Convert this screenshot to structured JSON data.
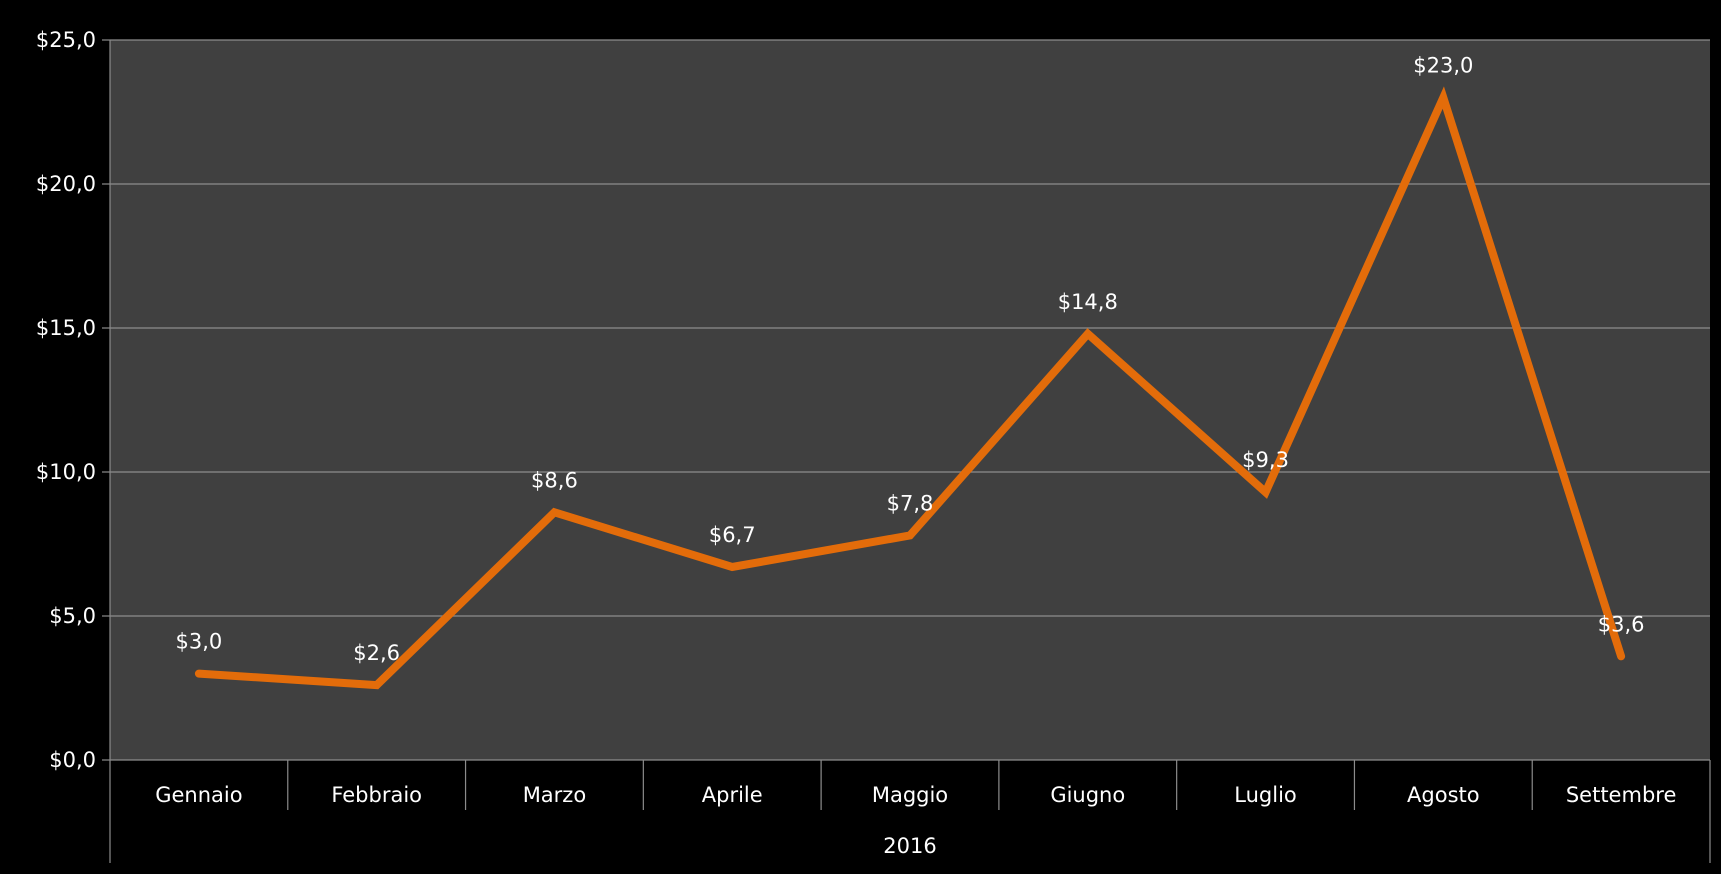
{
  "chart_data": {
    "type": "line",
    "categories": [
      "Gennaio",
      "Febbraio",
      "Marzo",
      "Aprile",
      "Maggio",
      "Giugno",
      "Luglio",
      "Agosto",
      "Settembre"
    ],
    "group_label": "2016",
    "series": [
      {
        "values": [
          3.0,
          2.6,
          8.6,
          6.7,
          7.8,
          14.8,
          9.3,
          23.0,
          3.6
        ],
        "color": "#E36C0A"
      }
    ],
    "data_labels": [
      "$3,0",
      "$2,6",
      "$8,6",
      "$6,7",
      "$7,8",
      "$14,8",
      "$9,3",
      "$23,0",
      "$3,6"
    ],
    "y_ticks": [
      0,
      5,
      10,
      15,
      20,
      25
    ],
    "y_tick_labels": [
      "$0,0",
      "$5,0",
      "$10,0",
      "$15,0",
      "$20,0",
      "$25,0"
    ],
    "ylim": [
      0,
      25
    ],
    "title": "",
    "xlabel": "",
    "ylabel": "",
    "grid": true,
    "legend": "none",
    "colors": {
      "page_background": "#000000",
      "plot_background": "#404040",
      "gridline": "#8C8C8C",
      "text": "#FFFFFF",
      "line": "#E36C0A"
    }
  }
}
